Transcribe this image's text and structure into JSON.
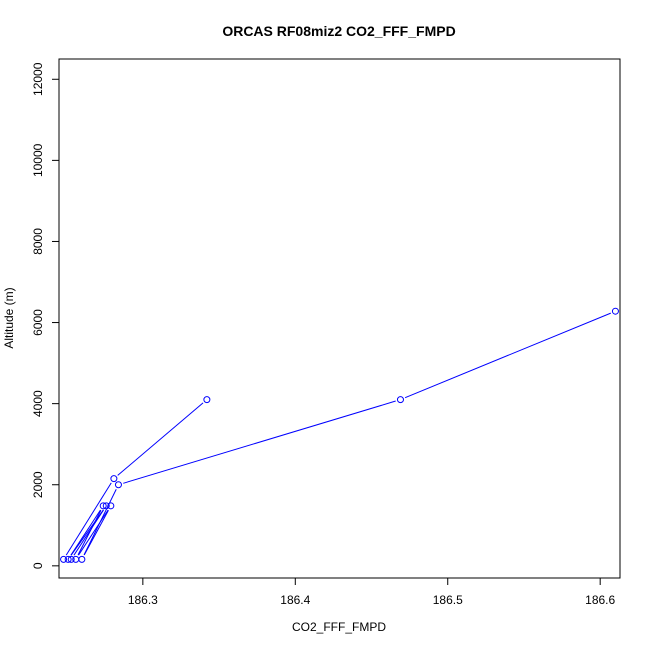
{
  "chart_data": {
    "type": "line",
    "title": "ORCAS RF08miz2 CO2_FFF_FMPD",
    "xlabel": "CO2_FFF_FMPD",
    "ylabel": "Altitude (m)",
    "xlim": [
      186.245,
      186.613
    ],
    "ylim": [
      -300,
      12500
    ],
    "x_ticks": [
      "186.3",
      "186.4",
      "186.5",
      "186.6"
    ],
    "x_tick_values": [
      186.3,
      186.4,
      186.5,
      186.6
    ],
    "y_ticks": [
      "0",
      "2000",
      "4000",
      "6000",
      "8000",
      "10000",
      "12000"
    ],
    "y_tick_values": [
      0,
      2000,
      4000,
      6000,
      8000,
      10000,
      12000
    ],
    "colors": {
      "series": "#0000ff",
      "axis": "#000000"
    },
    "series": [
      {
        "points": [
          {
            "x": 186.342,
            "y": 4100
          },
          {
            "x": 186.281,
            "y": 2150
          },
          {
            "x": 186.248,
            "y": 160
          },
          {
            "x": 186.253,
            "y": 160
          },
          {
            "x": 186.276,
            "y": 1480
          },
          {
            "x": 186.251,
            "y": 160
          },
          {
            "x": 186.274,
            "y": 1480
          },
          {
            "x": 186.256,
            "y": 160
          },
          {
            "x": 186.279,
            "y": 1480
          },
          {
            "x": 186.26,
            "y": 160
          },
          {
            "x": 186.284,
            "y": 2000
          },
          {
            "x": 186.469,
            "y": 4100
          },
          {
            "x": 186.61,
            "y": 6280
          }
        ]
      }
    ]
  }
}
